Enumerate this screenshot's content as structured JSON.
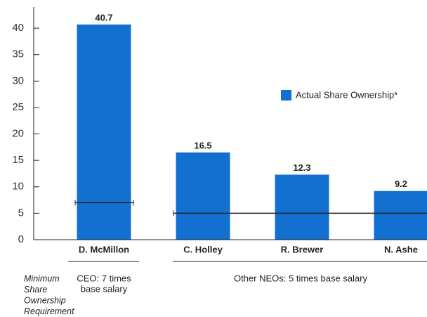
{
  "chart_data": {
    "type": "bar",
    "categories": [
      "D. McMillon",
      "C. Holley",
      "R. Brewer",
      "N. Ashe"
    ],
    "series": [
      {
        "name": "Actual Share Ownership*",
        "color": "#1170d0",
        "values": [
          40.7,
          16.5,
          12.3,
          9.2
        ]
      }
    ],
    "ylim": [
      0,
      44
    ],
    "yticks": [
      0,
      5,
      10,
      15,
      20,
      25,
      30,
      35,
      40
    ],
    "requirements": [
      {
        "label_lines": [
          "CEO: 7 times",
          "base salary"
        ],
        "value": 7
      },
      {
        "label_lines": [
          "Other NEOs: 5 times base salary"
        ],
        "value": 5
      }
    ],
    "requirement_caption": [
      "Minimum",
      "Share",
      "Ownership",
      "Requirement"
    ]
  }
}
